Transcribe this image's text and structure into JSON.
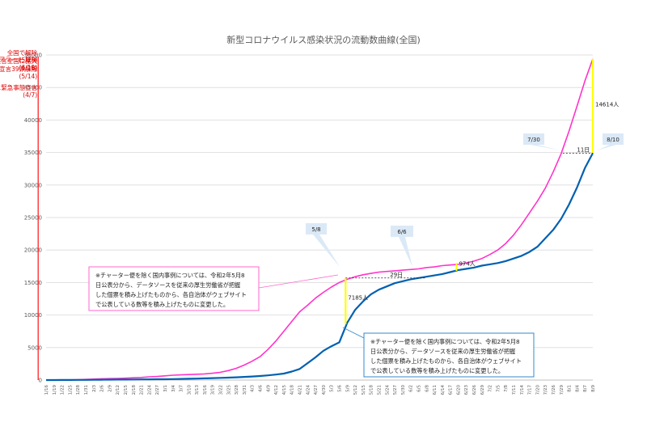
{
  "chart_data": {
    "type": "line",
    "title": "新型コロナウイルス感染状況の流動数曲線(全国)",
    "ylim": [
      0,
      50000
    ],
    "yticks": [
      0,
      5000,
      10000,
      15000,
      20000,
      25000,
      30000,
      35000,
      40000,
      45000,
      50000
    ],
    "x": [
      "1/16",
      "1/19",
      "1/22",
      "1/25",
      "1/28",
      "1/31",
      "2/3",
      "2/6",
      "2/9",
      "2/12",
      "2/15",
      "2/18",
      "2/21",
      "2/24",
      "2/27",
      "3/1",
      "3/4",
      "3/7",
      "3/10",
      "3/13",
      "3/16",
      "3/19",
      "3/22",
      "3/25",
      "3/28",
      "3/31",
      "4/3",
      "4/6",
      "4/9",
      "4/12",
      "4/15",
      "4/18",
      "4/21",
      "4/24",
      "4/27",
      "4/30",
      "5/3",
      "5/6",
      "5/9",
      "5/12",
      "5/15",
      "5/18",
      "5/21",
      "5/24",
      "5/27",
      "5/30",
      "6/2",
      "6/5",
      "6/8",
      "6/11",
      "6/14",
      "6/17",
      "6/20",
      "6/23",
      "6/26",
      "6/29",
      "7/2",
      "7/5",
      "7/8",
      "7/11",
      "7/14",
      "7/17",
      "7/20",
      "7/23",
      "7/26",
      "7/29",
      "8/1",
      "8/4",
      "8/7",
      "8/9"
    ],
    "series": [
      {
        "color": "#ff33cc",
        "values": [
          1,
          10,
          20,
          30,
          50,
          100,
          150,
          200,
          220,
          250,
          280,
          350,
          400,
          500,
          550,
          650,
          750,
          800,
          850,
          900,
          950,
          1050,
          1200,
          1450,
          1800,
          2300,
          2900,
          3600,
          4700,
          6000,
          7500,
          9000,
          10500,
          11500,
          12600,
          13500,
          14300,
          15000,
          15500,
          15900,
          16200,
          16400,
          16600,
          16700,
          16800,
          16900,
          17000,
          17100,
          17300,
          17400,
          17600,
          17700,
          17800,
          18000,
          18300,
          18700,
          19300,
          20000,
          21000,
          22300,
          23900,
          25700,
          27500,
          29500,
          32000,
          34800,
          38300,
          42100,
          46000,
          49400
        ]
      },
      {
        "color": "#0060b0",
        "values": [
          1,
          5,
          10,
          15,
          20,
          30,
          40,
          50,
          60,
          70,
          80,
          90,
          100,
          110,
          120,
          130,
          150,
          170,
          200,
          230,
          260,
          300,
          330,
          370,
          420,
          480,
          550,
          620,
          720,
          850,
          1000,
          1300,
          1700,
          2600,
          3500,
          4500,
          5200,
          5800,
          8800,
          10800,
          12100,
          13200,
          13900,
          14400,
          14900,
          15200,
          15500,
          15700,
          15900,
          16100,
          16300,
          16600,
          16900,
          17100,
          17300,
          17600,
          17800,
          18000,
          18300,
          18700,
          19100,
          19700,
          20500,
          21800,
          23100,
          24800,
          27000,
          29600,
          32600,
          34900
        ]
      }
    ],
    "events": [
      {
        "date": "4/7",
        "label": "7都府県に緊急事態宣言",
        "date_label": "(4/7)"
      },
      {
        "date": "4/16",
        "label": "緊急事態宣言全国に拡大",
        "date_label": "(4/16)"
      },
      {
        "date": "5/14",
        "label": "緊急事態宣言39県解除",
        "date_label": "(5/14)"
      },
      {
        "date": "5/25",
        "label": "全国で解除",
        "date_label": "(5/25)"
      },
      {
        "date": "6/19",
        "label": "東京アラート 解除",
        "date_label": "(6/19)"
      }
    ],
    "annotations": {
      "gap_5_8": "7185人",
      "gap_8_10": "14614人",
      "days_29": "29日",
      "days_11": "11日",
      "value_974": "974人",
      "callout_5_8": "5/8",
      "callout_6_6": "6/6",
      "callout_7_30": "7/30",
      "callout_8_10": "8/10"
    },
    "notes": [
      [
        "※チャーター便を除く国内事例については、令和2年5月8",
        "日公表分から、データソースを従来の厚生労働省が把握",
        "した個票を積み上げたものから、各自治体がウェブサイト",
        "で公表している数等を積み上げたものに変更した。"
      ],
      [
        "※チャーター便を除く国内事例については、令和2年5月8",
        "日公表分から、データソースを従来の厚生労働省が把握",
        "した個票を積み上げたものから、各自治体がウェブサイト",
        "で公表している数等を積み上げたものに変更した。"
      ]
    ],
    "grid": true,
    "legend": "none"
  }
}
